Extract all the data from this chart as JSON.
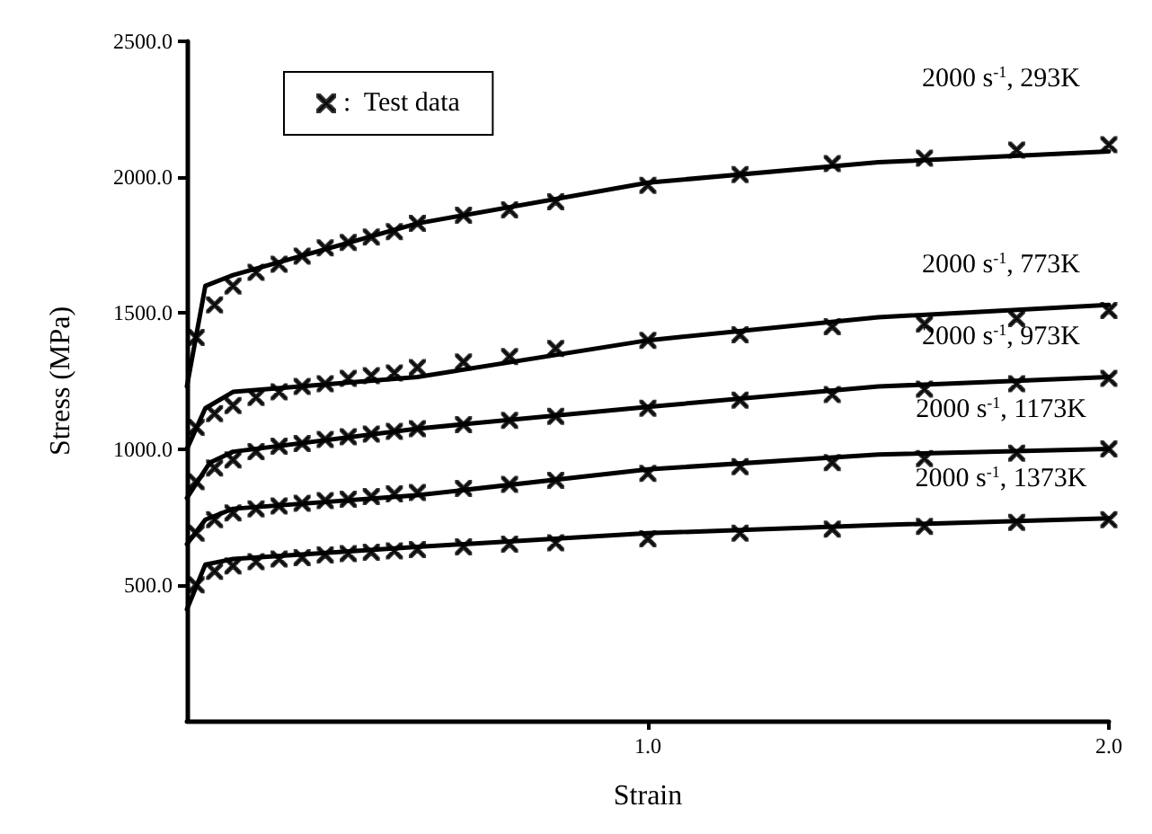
{
  "chart_data": {
    "type": "line",
    "xlabel": "Strain",
    "ylabel": "Stress (MPa)",
    "xlim": [
      0,
      2
    ],
    "ylim": [
      0,
      2500
    ],
    "xticks": [
      {
        "value": 1,
        "label": "1.0"
      },
      {
        "value": 2,
        "label": "2.0"
      }
    ],
    "yticks": [
      {
        "value": 500,
        "label": "500.0"
      },
      {
        "value": 1000,
        "label": "1000.0"
      },
      {
        "value": 1500,
        "label": "1500.0"
      },
      {
        "value": 2000,
        "label": "2000.0"
      },
      {
        "value": 2500,
        "label": "2500.0"
      }
    ],
    "grid": false,
    "legend": "top left",
    "line_style": "solid",
    "series": [
      {
        "marker": "none",
        "color": "#000000",
        "x": [
          0,
          0.04,
          0.1,
          0.5,
          1.0,
          1.5,
          2.0
        ],
        "values": [
          1230,
          1600,
          1640,
          1830,
          1980,
          2055,
          2095
        ]
      },
      {
        "marker": "none",
        "color": "#000000",
        "x": [
          0,
          0.04,
          0.1,
          0.5,
          1.0,
          1.5,
          2.0
        ],
        "values": [
          1000,
          1150,
          1210,
          1265,
          1400,
          1485,
          1530
        ]
      },
      {
        "marker": "none",
        "color": "#000000",
        "x": [
          0,
          0.05,
          0.1,
          0.5,
          1.0,
          1.5,
          2.0
        ],
        "values": [
          820,
          950,
          990,
          1075,
          1155,
          1230,
          1265
        ]
      },
      {
        "marker": "none",
        "color": "#000000",
        "x": [
          0,
          0.04,
          0.1,
          0.5,
          1.0,
          1.5,
          2.0
        ],
        "values": [
          650,
          740,
          780,
          830,
          925,
          980,
          1000
        ]
      },
      {
        "marker": "none",
        "color": "#000000",
        "x": [
          0,
          0.04,
          0.1,
          0.5,
          1.0,
          1.5,
          2.0
        ],
        "values": [
          410,
          575,
          595,
          640,
          690,
          720,
          745
        ]
      },
      {
        "type": "scatter",
        "name": ":  Test data",
        "marker": "cross",
        "color": "#000000",
        "x": [
          0.02,
          0.06,
          0.1,
          0.15,
          0.2,
          0.25,
          0.3,
          0.35,
          0.4,
          0.45,
          0.5,
          0.6,
          0.7,
          0.8,
          1.0,
          1.2,
          1.4,
          1.6,
          1.8,
          2.0,
          0.02,
          0.06,
          0.1,
          0.15,
          0.2,
          0.25,
          0.3,
          0.35,
          0.4,
          0.45,
          0.5,
          0.6,
          0.7,
          0.8,
          1.0,
          1.2,
          1.4,
          1.6,
          1.8,
          2.0,
          0.02,
          0.06,
          0.1,
          0.15,
          0.2,
          0.25,
          0.3,
          0.35,
          0.4,
          0.45,
          0.5,
          0.6,
          0.7,
          0.8,
          1.0,
          1.2,
          1.4,
          1.6,
          1.8,
          2.0,
          0.02,
          0.06,
          0.1,
          0.15,
          0.2,
          0.25,
          0.3,
          0.35,
          0.4,
          0.45,
          0.5,
          0.6,
          0.7,
          0.8,
          1.0,
          1.2,
          1.4,
          1.6,
          1.8,
          2.0,
          0.02,
          0.06,
          0.1,
          0.15,
          0.2,
          0.25,
          0.3,
          0.35,
          0.4,
          0.45,
          0.5,
          0.6,
          0.7,
          0.8,
          1.0,
          1.2,
          1.4,
          1.6,
          1.8,
          2.0
        ],
        "values": [
          1410,
          1530,
          1600,
          1650,
          1680,
          1710,
          1740,
          1760,
          1780,
          1800,
          1830,
          1860,
          1880,
          1910,
          1970,
          2010,
          2050,
          2070,
          2100,
          2120,
          1080,
          1130,
          1160,
          1190,
          1210,
          1230,
          1240,
          1260,
          1270,
          1280,
          1300,
          1320,
          1340,
          1370,
          1400,
          1420,
          1450,
          1460,
          1480,
          1510,
          880,
          930,
          960,
          990,
          1010,
          1020,
          1035,
          1045,
          1055,
          1065,
          1075,
          1090,
          1105,
          1120,
          1150,
          1180,
          1200,
          1220,
          1240,
          1260,
          690,
          740,
          765,
          780,
          790,
          800,
          810,
          815,
          825,
          835,
          840,
          855,
          870,
          885,
          910,
          935,
          950,
          965,
          985,
          1000,
          500,
          550,
          570,
          585,
          595,
          600,
          610,
          615,
          620,
          625,
          630,
          640,
          650,
          655,
          670,
          690,
          705,
          715,
          730,
          740
        ]
      }
    ],
    "annotations": [
      "2000 s$^{-1}$, 293K",
      "2000 s$^{-1}$, 773K",
      "2000 s$^{-1}$, 973K",
      "2000 s$^{-1}$, 1173K",
      "2000 s$^{-1}$, 1373K"
    ]
  }
}
